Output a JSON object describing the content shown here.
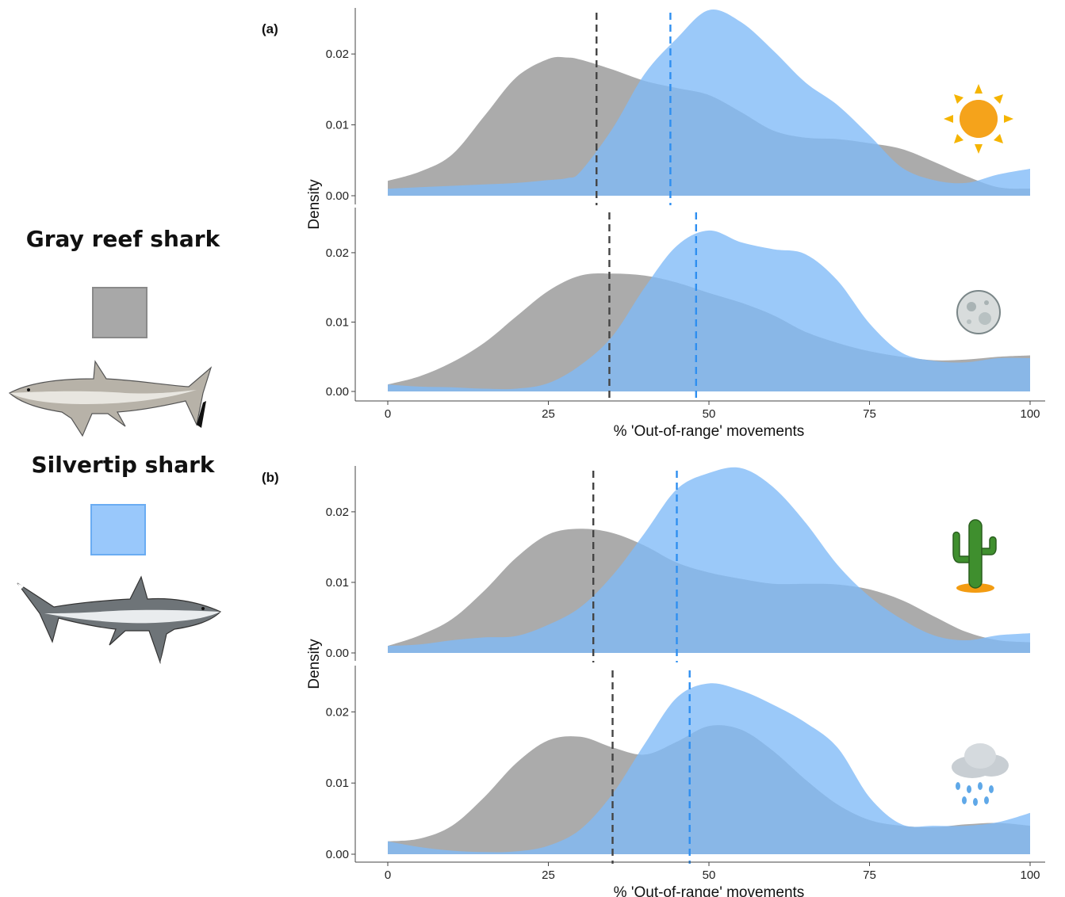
{
  "legend": {
    "items": [
      {
        "label": "Gray reef shark",
        "color": "#a8a8a8",
        "border": "#8a8a8a",
        "icon": "gray-reef-shark-illustration"
      },
      {
        "label": "Silvertip shark",
        "color": "#99c8fb",
        "border": "#6aacf2",
        "icon": "silvertip-shark-illustration"
      }
    ]
  },
  "colors": {
    "gray_fill": "#a6a6a6",
    "blue_fill": "#7fbaf7",
    "gray_mean_line": "#444444",
    "blue_mean_line": "#2f8ff0",
    "axis": "#444444"
  },
  "chart_data": [
    {
      "type": "area",
      "panel": "(a)",
      "condition_icon": "sun-icon",
      "xlabel": "",
      "ylabel": "Density",
      "xlim": [
        -5,
        102
      ],
      "ylim": [
        0,
        0.0265
      ],
      "yticks": [
        0,
        0.01,
        0.02
      ],
      "ytick_labels": [
        "0.00",
        "0.01",
        "0.02"
      ],
      "xticks": [],
      "xtick_labels": [],
      "means": {
        "Gray reef shark": 32.5,
        "Silvertip shark": 44.0
      },
      "x": [
        0,
        5,
        10,
        15,
        20,
        25,
        28,
        30,
        35,
        40,
        45,
        50,
        55,
        60,
        65,
        70,
        75,
        80,
        85,
        90,
        95,
        100
      ],
      "series": [
        {
          "name": "Gray reef shark",
          "values": [
            0.0021,
            0.0034,
            0.0058,
            0.0112,
            0.0167,
            0.0193,
            0.0195,
            0.0192,
            0.0178,
            0.0162,
            0.0152,
            0.0142,
            0.0118,
            0.0092,
            0.0082,
            0.008,
            0.0074,
            0.0066,
            0.0048,
            0.0028,
            0.0012,
            0.001
          ]
        },
        {
          "name": "Silvertip shark",
          "values": [
            0.001,
            0.0012,
            0.0014,
            0.0016,
            0.0018,
            0.0022,
            0.0025,
            0.0034,
            0.0095,
            0.0172,
            0.0222,
            0.0262,
            0.0245,
            0.0205,
            0.016,
            0.0128,
            0.0085,
            0.004,
            0.0022,
            0.0018,
            0.003,
            0.0038
          ]
        }
      ]
    },
    {
      "type": "area",
      "panel": "(a)",
      "condition_icon": "moon-icon",
      "xlabel": "% 'Out-of-range' movements",
      "ylabel": "Density",
      "xlim": [
        -5,
        102
      ],
      "ylim": [
        0,
        0.0265
      ],
      "yticks": [
        0,
        0.01,
        0.02
      ],
      "ytick_labels": [
        "0.00",
        "0.01",
        "0.02"
      ],
      "xticks": [
        0,
        25,
        50,
        75,
        100
      ],
      "xtick_labels": [
        "0",
        "25",
        "50",
        "75",
        "100"
      ],
      "means": {
        "Gray reef shark": 34.5,
        "Silvertip shark": 48.0
      },
      "x": [
        0,
        5,
        10,
        15,
        20,
        25,
        30,
        35,
        40,
        45,
        50,
        55,
        60,
        65,
        70,
        75,
        80,
        85,
        90,
        95,
        100
      ],
      "series": [
        {
          "name": "Gray reef shark",
          "values": [
            0.001,
            0.0022,
            0.0042,
            0.007,
            0.0108,
            0.0145,
            0.0167,
            0.017,
            0.0167,
            0.0157,
            0.0142,
            0.0128,
            0.011,
            0.0086,
            0.007,
            0.0058,
            0.005,
            0.0045,
            0.0046,
            0.005,
            0.0052
          ]
        },
        {
          "name": "Silvertip shark",
          "values": [
            0.001,
            0.0007,
            0.0006,
            0.0004,
            0.0004,
            0.0012,
            0.0038,
            0.008,
            0.015,
            0.021,
            0.0232,
            0.0215,
            0.0205,
            0.0198,
            0.016,
            0.0098,
            0.0056,
            0.0044,
            0.0042,
            0.0048,
            0.0048
          ]
        }
      ]
    },
    {
      "type": "area",
      "panel": "(b)",
      "condition_icon": "cactus-icon",
      "xlabel": "",
      "ylabel": "Density",
      "xlim": [
        -5,
        102
      ],
      "ylim": [
        0,
        0.0265
      ],
      "yticks": [
        0,
        0.01,
        0.02
      ],
      "ytick_labels": [
        "0.00",
        "0.01",
        "0.02"
      ],
      "xticks": [],
      "xtick_labels": [],
      "means": {
        "Gray reef shark": 32.0,
        "Silvertip shark": 45.0
      },
      "x": [
        0,
        5,
        10,
        15,
        20,
        25,
        30,
        35,
        40,
        45,
        50,
        55,
        60,
        65,
        70,
        75,
        80,
        85,
        90,
        95,
        100
      ],
      "series": [
        {
          "name": "Gray reef shark",
          "values": [
            0.001,
            0.0025,
            0.0048,
            0.0088,
            0.0135,
            0.0168,
            0.0176,
            0.017,
            0.0152,
            0.0128,
            0.0114,
            0.0105,
            0.0098,
            0.0098,
            0.0097,
            0.009,
            0.0075,
            0.0052,
            0.003,
            0.0018,
            0.0015
          ]
        },
        {
          "name": "Silvertip shark",
          "values": [
            0.001,
            0.0012,
            0.0018,
            0.0022,
            0.0024,
            0.004,
            0.0065,
            0.011,
            0.017,
            0.0232,
            0.0255,
            0.0262,
            0.0235,
            0.0185,
            0.0125,
            0.008,
            0.0048,
            0.0025,
            0.0018,
            0.0025,
            0.0028
          ]
        }
      ]
    },
    {
      "type": "area",
      "panel": "(b)",
      "condition_icon": "rain-cloud-icon",
      "xlabel": "% 'Out-of-range' movements",
      "ylabel": "Density",
      "xlim": [
        -5,
        102
      ],
      "ylim": [
        0,
        0.0265
      ],
      "yticks": [
        0,
        0.01,
        0.02
      ],
      "ytick_labels": [
        "0.00",
        "0.01",
        "0.02"
      ],
      "xticks": [
        0,
        25,
        50,
        75,
        100
      ],
      "xtick_labels": [
        "0",
        "25",
        "50",
        "75",
        "100"
      ],
      "means": {
        "Gray reef shark": 35.0,
        "Silvertip shark": 47.0
      },
      "x": [
        0,
        5,
        10,
        15,
        20,
        25,
        30,
        35,
        40,
        45,
        50,
        55,
        60,
        65,
        70,
        75,
        80,
        85,
        90,
        95,
        100
      ],
      "series": [
        {
          "name": "Gray reef shark",
          "values": [
            0.0018,
            0.0022,
            0.004,
            0.008,
            0.0128,
            0.016,
            0.0165,
            0.015,
            0.014,
            0.0158,
            0.018,
            0.0175,
            0.0145,
            0.0105,
            0.007,
            0.0048,
            0.004,
            0.0038,
            0.0042,
            0.0044,
            0.004
          ]
        },
        {
          "name": "Silvertip shark",
          "values": [
            0.0018,
            0.001,
            0.0005,
            0.0003,
            0.0004,
            0.0012,
            0.0035,
            0.0085,
            0.0155,
            0.022,
            0.024,
            0.023,
            0.021,
            0.0185,
            0.015,
            0.008,
            0.0042,
            0.004,
            0.004,
            0.0045,
            0.0058
          ]
        }
      ]
    }
  ],
  "panel_labels": {
    "a": "(a)",
    "b": "(b)"
  },
  "axis_titles": {
    "density": "Density",
    "x": "% 'Out-of-range' movements"
  }
}
